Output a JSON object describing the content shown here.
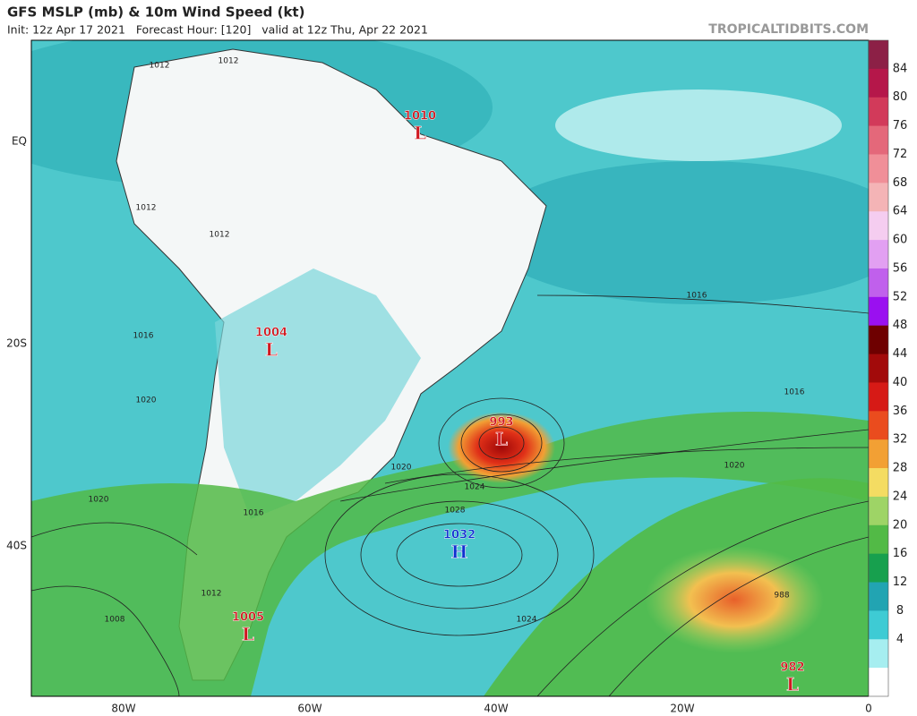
{
  "header": {
    "title": "GFS MSLP (mb) & 10m Wind Speed (kt)",
    "subtitle": "Init: 12z Apr 17 2021   Forecast Hour: [120]   valid at 12z Thu, Apr 22 2021",
    "brand": "TROPICALTIDBITS.COM"
  },
  "axes": {
    "longitude": [
      "80W",
      "60W",
      "40W",
      "20W",
      "0"
    ],
    "latitude": [
      "EQ",
      "20S",
      "40S"
    ]
  },
  "centers": [
    {
      "pressure": "1010",
      "symbol": "L"
    },
    {
      "pressure": "1004",
      "symbol": "L"
    },
    {
      "pressure": "993",
      "symbol": "L"
    },
    {
      "pressure": "1032",
      "symbol": "H"
    },
    {
      "pressure": "1005",
      "symbol": "L"
    },
    {
      "pressure": "982",
      "symbol": "L"
    }
  ],
  "isobar_labels": [
    "1012",
    "1012",
    "1012",
    "1012",
    "1016",
    "1016",
    "1016",
    "1020",
    "1020",
    "1020",
    "1020",
    "1024",
    "1028",
    "1024",
    "1016",
    "1012",
    "1008",
    "988"
  ],
  "colorbar": {
    "labels": [
      84,
      80,
      76,
      72,
      68,
      64,
      60,
      56,
      52,
      48,
      44,
      40,
      36,
      32,
      28,
      24,
      20,
      16,
      12,
      8,
      4
    ],
    "colors": [
      "#8c2046",
      "#b5174a",
      "#d23a5a",
      "#e4687a",
      "#f08f98",
      "#f4b4b6",
      "#f5cdf0",
      "#e2a0f2",
      "#c060ec",
      "#9a10f0",
      "#6e0000",
      "#a20a0a",
      "#d61a16",
      "#ea4c1e",
      "#f2a034",
      "#f4dc62",
      "#9ed466",
      "#52ba46",
      "#17a04e",
      "#22a4b2",
      "#3ecbd4",
      "#a6eef0",
      "#ffffff"
    ]
  }
}
